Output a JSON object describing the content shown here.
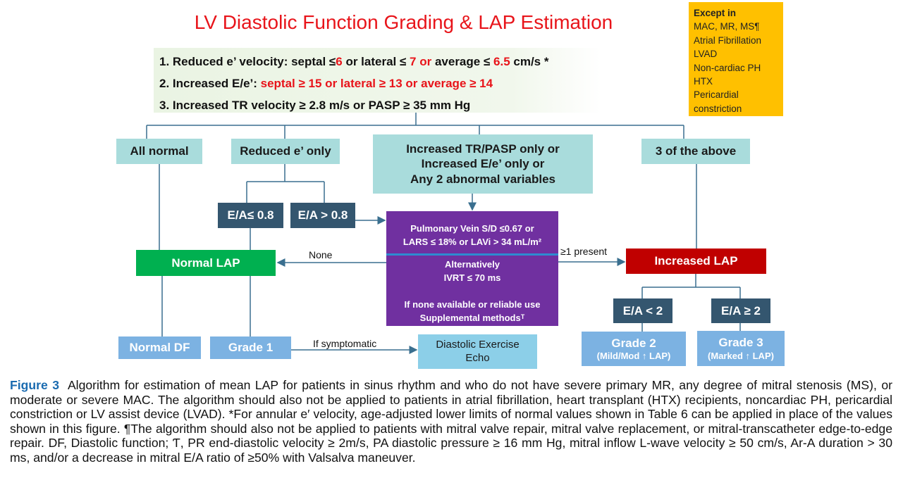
{
  "title": "LV Diastolic Function Grading & LAP Estimation",
  "criteria": {
    "c1": {
      "prefix": "1. Reduced e’ velocity:  septal ≤",
      "v1": "6",
      "mid1": "  or lateral ≤ ",
      "v2": "7 or",
      "mid2": " average ≤ ",
      "v3": "6.5",
      "suffix": " cm/s *"
    },
    "c2": {
      "prefix": "2. Increased E/e’: ",
      "red": "septal ≥ 15 or lateral ≥ 13 or average ≥ 14"
    },
    "c3": "3. Increased TR velocity ≥ 2.8 m/s or PASP ≥ 35 mm Hg"
  },
  "exceptions": {
    "heading": "Except in",
    "items": [
      "MAC, MR, MS¶",
      "Atrial Fibrillation",
      "LVAD",
      "Non-cardiac PH",
      "HTX",
      "Pericardial constriction"
    ]
  },
  "nodes": {
    "all_normal": "All normal",
    "reduced_e_only": "Reduced e’ only",
    "middle": [
      "Increased TR/PASP only or",
      "Increased E/e’ only or",
      "Any 2 abnormal variables"
    ],
    "three_above": "3 of the above",
    "ea_le_08": "E/A≤ 0.8",
    "ea_gt_08": "E/A > 0.8",
    "purple": {
      "l1": "Pulmonary Vein S/D ≤0.67 or",
      "l2": "LARS ≤ 18% or LAVi > 34 mL/m²",
      "l3": "Alternatively",
      "l4": "IVRT  ≤ 70 ms",
      "l5": "If none available or reliable use",
      "l6": "Supplemental methodsᵀ"
    },
    "normal_lap": "Normal LAP",
    "increased_lap": "Increased LAP",
    "ea_lt_2": "E/A <  2",
    "ea_ge_2": "E/A ≥ 2",
    "grade2": "Grade 2",
    "grade2_sub": "(Mild/Mod ↑ LAP)",
    "grade3": "Grade 3",
    "grade3_sub": "(Marked ↑ LAP)",
    "normal_df": "Normal DF",
    "grade1": "Grade 1",
    "exercise_echo": [
      "Diastolic Exercise",
      "Echo"
    ]
  },
  "edge_labels": {
    "none": "None",
    "present": "≥1 present",
    "symptomatic": "If symptomatic"
  },
  "caption": {
    "label": "Figure 3",
    "text": "Algorithm for estimation of mean LAP for patients in sinus rhythm and who do not have severe primary MR, any degree of mitral stenosis (MS), or moderate or severe MAC. The algorithm should also not be applied to patients in atrial fibrillation, heart transplant (HTX) recipients, noncardiac PH, pericardial constriction or LV assist device (LVAD). *For annular e′ velocity, age-adjusted lower limits of normal values shown in Table 6 can be applied in place of the values shown in this figure. ¶The algorithm should also not be applied to patients with mitral valve repair, mitral valve replacement, or mitral-transcatheter edge-to-edge repair. DF, Diastolic function; Ƭ, PR end-diastolic velocity ≥ 2m/s, PA diastolic pressure ≥ 16 mm Hg, mitral inflow L-wave velocity ≥ 50 cm/s, Ar-A duration > 30 ms, and/or a decrease in mitral E/A ratio of ≥50% with Valsalva maneuver."
  },
  "colors": {
    "title": "#e8141a",
    "teal": "#a9dcdc",
    "dark": "#34566f",
    "purple": "#7030a0",
    "green": "#00b050",
    "red": "#c00000",
    "yellow": "#ffc000",
    "light_blue": "#7cb2e2",
    "echo": "#8ccfe8",
    "line": "#3a6f8f"
  }
}
